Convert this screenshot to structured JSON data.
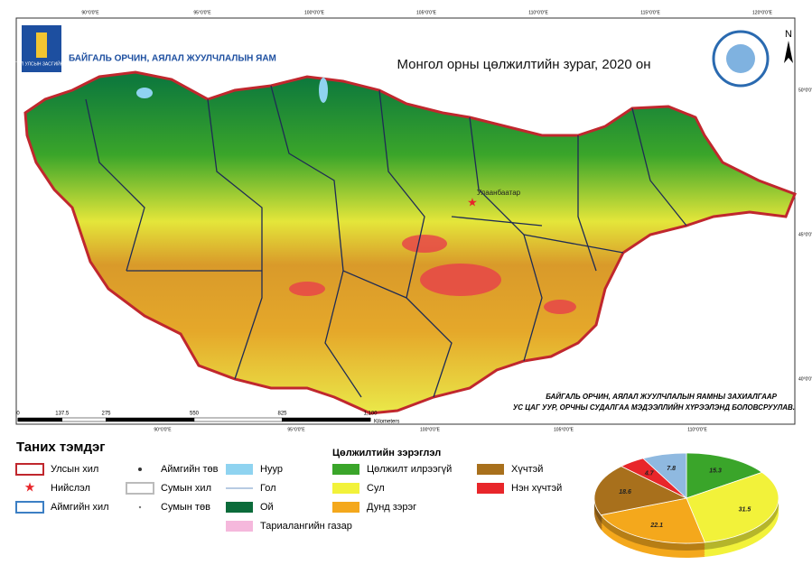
{
  "header": {
    "logo_text": "МОНГОЛ УЛСЫН ЗАСГИЙН ГАЗАР",
    "ministry": "БАЙГАЛЬ ОРЧИН, АЯЛАЛ ЖУУЛЧЛАЛЫН ЯАМ",
    "title": "Монгол орны цөлжилтийн зураг, 2020 он",
    "north": "N"
  },
  "map": {
    "capital": "Улаанбаатар",
    "top_coords": [
      "90°0'0\"E",
      "95°0'0\"E",
      "100°0'0\"E",
      "105°0'0\"E",
      "110°0'0\"E",
      "115°0'0\"E",
      "120°0'0\"E"
    ],
    "bottom_coords": [
      "90°0'0\"E",
      "95°0'0\"E",
      "100°0'0\"E",
      "105°0'0\"E",
      "110°0'0\"E",
      "115°0'0\"E"
    ],
    "right_coords": [
      "50°0'0\"N",
      "45°0'0\"N",
      "40°0'0\"N"
    ],
    "credits": [
      "БАЙГАЛЬ ОРЧИН, АЯЛАЛ ЖУУЛЧЛАЛЫН ЯАМНЫ ЗАХИАЛГААР",
      "УС ЦАГ УУР, ОРЧНЫ СУДАЛГАА МЭДЭЭЛЛИЙН ХҮРЭЭЛЭНД БОЛОВСРУУЛАВ."
    ],
    "scale": {
      "ticks": [
        0,
        137.5,
        275,
        550,
        825,
        {
          "value": 1100,
          "label": "1,100"
        }
      ],
      "unit": "Kilometers"
    }
  },
  "legend": {
    "title": "Таних тэмдэг",
    "items": [
      {
        "label": "Улсын хил",
        "symbol": "box",
        "color": "#c0272d"
      },
      {
        "label": "Нийслэл",
        "symbol": "star",
        "color": "#e8262a"
      },
      {
        "label": "Аймгийн хил",
        "symbol": "box",
        "color": "#3c7fc4"
      },
      {
        "label": "Аймгийн төв",
        "symbol": "dot",
        "color": "#333333"
      },
      {
        "label": "Сумын хил",
        "symbol": "box",
        "color": "#bbbbbb"
      },
      {
        "label": "Сумын төв",
        "symbol": "smalldot",
        "color": "#777777"
      },
      {
        "label": "Нуур",
        "symbol": "fill",
        "color": "#8fd3f0"
      },
      {
        "label": "Гол",
        "symbol": "line",
        "color": "#9fb8d8"
      },
      {
        "label": "Ой",
        "symbol": "fill",
        "color": "#0b6b3a"
      },
      {
        "label": "Тариалангийн газар",
        "symbol": "fill",
        "color": "#f5b8dc"
      }
    ],
    "classes_title": "Цөлжилтийн зэрэглэл",
    "classes": [
      {
        "label": "Цөлжилт илрээгүй",
        "color": "#3aa52a"
      },
      {
        "label": "Сул",
        "color": "#f2f23a"
      },
      {
        "label": "Дунд зэрэг",
        "color": "#f4a81c"
      },
      {
        "label": "Хүчтэй",
        "color": "#a8701c"
      },
      {
        "label": "Нэн хүчтэй",
        "color": "#e8262a"
      }
    ]
  },
  "chart_data": {
    "type": "pie",
    "values": [
      15.3,
      31.5,
      22.1,
      18.6,
      4.7,
      7.8
    ],
    "colors": [
      "#3aa52a",
      "#f2f23a",
      "#f4a81c",
      "#a8701c",
      "#e8262a",
      "#8fb9e0"
    ]
  }
}
